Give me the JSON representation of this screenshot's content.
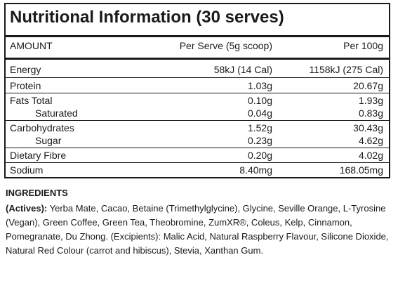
{
  "panel": {
    "title": "Nutritional Information (30 serves)",
    "headers": {
      "amount": "AMOUNT",
      "per_serve": "Per Serve (5g scoop)",
      "per_100g": "Per 100g"
    },
    "rows": [
      {
        "label": "Energy",
        "per_serve": "58kJ (14 Cal)",
        "per_100g": "1158kJ (275 Cal)"
      },
      {
        "label": "Protein",
        "per_serve": "1.03g",
        "per_100g": "20.67g"
      },
      {
        "label": "Fats Total",
        "per_serve": "0.10g",
        "per_100g": "1.93g"
      },
      {
        "label": "Saturated",
        "per_serve": "0.04g",
        "per_100g": "0.83g"
      },
      {
        "label": "Carbohydrates",
        "per_serve": "1.52g",
        "per_100g": "30.43g"
      },
      {
        "label": "Sugar",
        "per_serve": "0.23g",
        "per_100g": "4.62g"
      },
      {
        "label": "Dietary Fibre",
        "per_serve": "0.20g",
        "per_100g": "4.02g"
      },
      {
        "label": "Sodium",
        "per_serve": "8.40mg",
        "per_100g": "168.05mg"
      }
    ]
  },
  "ingredients": {
    "heading": "INGREDIENTS",
    "actives_label": "(Actives):",
    "text": " Yerba Mate, Cacao, Betaine (Trimethylglycine), Glycine, Seville Orange, L-Tyrosine (Vegan), Green Coffee, Green Tea, Theobromine, ZumXR®, Coleus, Kelp, Cinnamon, Pomegranate, Du Zhong. (Excipients): Malic Acid, Natural Raspberry Flavour, Silicone Dioxide, Natural Red Colour (carrot and hibiscus), Stevia, Xanthan Gum."
  }
}
